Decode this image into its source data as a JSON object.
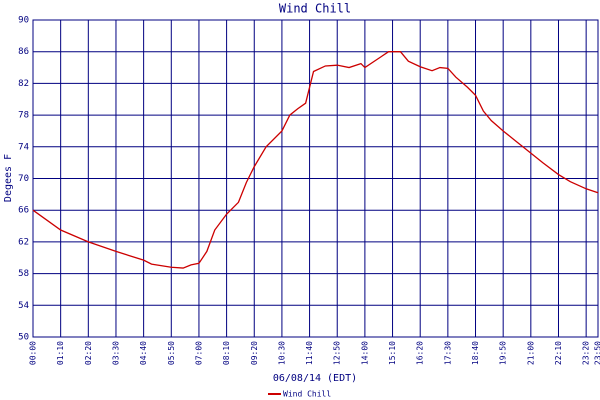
{
  "chart_data": {
    "type": "line",
    "title": "Wind Chill",
    "y_label": "Degees F",
    "x_label": "06/08/14 (EDT)",
    "x": [
      "00:00",
      "01:10",
      "02:20",
      "03:30",
      "04:40",
      "05:00",
      "05:50",
      "06:20",
      "06:40",
      "07:00",
      "07:20",
      "07:40",
      "08:10",
      "08:40",
      "09:00",
      "09:20",
      "09:50",
      "10:30",
      "10:50",
      "11:10",
      "11:30",
      "11:50",
      "12:20",
      "12:50",
      "13:20",
      "13:50",
      "14:00",
      "14:30",
      "15:00",
      "15:30",
      "15:50",
      "16:20",
      "16:50",
      "17:10",
      "17:30",
      "17:50",
      "18:20",
      "18:40",
      "19:00",
      "19:20",
      "19:50",
      "20:20",
      "21:00",
      "21:30",
      "22:10",
      "22:40",
      "23:20",
      "23:50"
    ],
    "series": [
      {
        "name": "Wind Chill",
        "color": "#cc0000",
        "values": [
          66,
          63.5,
          62,
          60.8,
          59.7,
          59.2,
          58.8,
          58.7,
          59.1,
          59.3,
          60.8,
          63.5,
          65.5,
          67,
          69.5,
          71.5,
          74,
          76,
          78,
          78.8,
          79.5,
          83.5,
          84.2,
          84.3,
          84,
          84.5,
          84,
          85,
          86,
          86,
          84.8,
          84.1,
          83.6,
          84,
          83.9,
          82.8,
          81.5,
          80.5,
          78.5,
          77.3,
          76,
          74.8,
          73.2,
          72,
          70.5,
          69.6,
          68.7,
          68.2
        ]
      }
    ],
    "xlim": [
      "00:00",
      "23:50"
    ],
    "xticks": [
      "00:00",
      "01:10",
      "02:20",
      "03:30",
      "04:40",
      "05:50",
      "07:00",
      "08:10",
      "09:20",
      "10:30",
      "11:40",
      "12:50",
      "14:00",
      "15:10",
      "16:20",
      "17:30",
      "18:40",
      "19:50",
      "21:00",
      "22:10",
      "23:20",
      "23:50"
    ],
    "ylim": [
      50,
      90
    ],
    "yticks": [
      50,
      54,
      58,
      62,
      66,
      70,
      74,
      78,
      82,
      86,
      90
    ],
    "grid": true,
    "grid_color": "#000080"
  }
}
